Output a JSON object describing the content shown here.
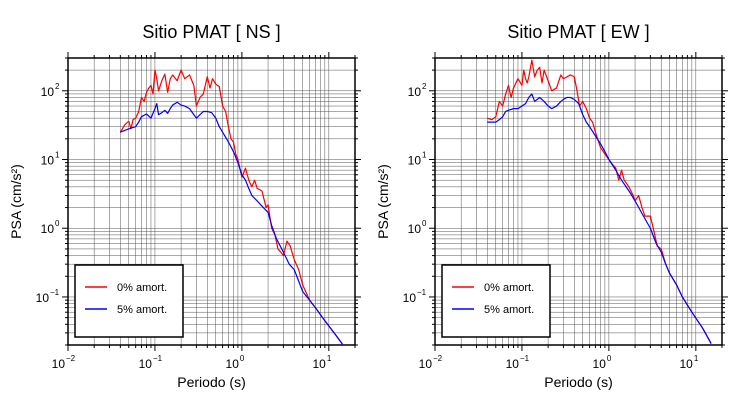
{
  "chart_data": [
    {
      "type": "line",
      "title": "Sitio PMAT [ NS ]",
      "xlabel": "Periodo (s)",
      "ylabel": "PSA (cm/s²)",
      "xscale": "log",
      "yscale": "log",
      "xlim": [
        0.01,
        20
      ],
      "ylim": [
        0.02,
        300
      ],
      "grid": true,
      "legend_position": "bottom-left",
      "x_ticks": [
        {
          "value": 0.01,
          "base": "10",
          "exp": "−2"
        },
        {
          "value": 0.1,
          "base": "10",
          "exp": "−1"
        },
        {
          "value": 1,
          "base": "10",
          "exp": "0"
        },
        {
          "value": 10,
          "base": "10",
          "exp": "1"
        }
      ],
      "y_ticks": [
        {
          "value": 0.1,
          "base": "10",
          "exp": "−1"
        },
        {
          "value": 1,
          "base": "10",
          "exp": "0"
        },
        {
          "value": 10,
          "base": "10",
          "exp": "1"
        },
        {
          "value": 100,
          "base": "10",
          "exp": "2"
        }
      ],
      "series": [
        {
          "name": "0% amort.",
          "color": "#ff0000",
          "points": [
            [
              0.04,
              25
            ],
            [
              0.045,
              32
            ],
            [
              0.05,
              36
            ],
            [
              0.053,
              28
            ],
            [
              0.056,
              38
            ],
            [
              0.06,
              40
            ],
            [
              0.065,
              50
            ],
            [
              0.07,
              80
            ],
            [
              0.075,
              70
            ],
            [
              0.08,
              95
            ],
            [
              0.085,
              110
            ],
            [
              0.09,
              120
            ],
            [
              0.095,
              90
            ],
            [
              0.1,
              200
            ],
            [
              0.105,
              150
            ],
            [
              0.11,
              100
            ],
            [
              0.12,
              140
            ],
            [
              0.13,
              175
            ],
            [
              0.14,
              95
            ],
            [
              0.15,
              150
            ],
            [
              0.16,
              170
            ],
            [
              0.18,
              140
            ],
            [
              0.2,
              200
            ],
            [
              0.22,
              150
            ],
            [
              0.25,
              170
            ],
            [
              0.28,
              120
            ],
            [
              0.3,
              60
            ],
            [
              0.33,
              80
            ],
            [
              0.36,
              90
            ],
            [
              0.4,
              160
            ],
            [
              0.43,
              110
            ],
            [
              0.46,
              150
            ],
            [
              0.5,
              125
            ],
            [
              0.55,
              115
            ],
            [
              0.6,
              60
            ],
            [
              0.65,
              50
            ],
            [
              0.7,
              30
            ],
            [
              0.75,
              20
            ],
            [
              0.8,
              18
            ],
            [
              0.85,
              12
            ],
            [
              0.9,
              10
            ],
            [
              1.0,
              5.5
            ],
            [
              1.1,
              7.5
            ],
            [
              1.2,
              5
            ],
            [
              1.3,
              4
            ],
            [
              1.4,
              5
            ],
            [
              1.5,
              3.8
            ],
            [
              1.7,
              3.5
            ],
            [
              1.9,
              2
            ],
            [
              2.0,
              2.2
            ],
            [
              2.2,
              1.0
            ],
            [
              2.4,
              0.8
            ],
            [
              2.6,
              0.5
            ],
            [
              2.8,
              0.45
            ],
            [
              3.0,
              0.4
            ],
            [
              3.3,
              0.65
            ],
            [
              3.6,
              0.55
            ],
            [
              4.0,
              0.35
            ],
            [
              4.5,
              0.25
            ],
            [
              5.0,
              0.15
            ],
            [
              6.0,
              0.09
            ],
            [
              7.0,
              0.07
            ],
            [
              9.0,
              0.045
            ],
            [
              12.0,
              0.028
            ],
            [
              15.0,
              0.019
            ]
          ]
        },
        {
          "name": "5% amort.",
          "color": "#0000ff",
          "points": [
            [
              0.04,
              25
            ],
            [
              0.05,
              28
            ],
            [
              0.06,
              30
            ],
            [
              0.065,
              35
            ],
            [
              0.07,
              42
            ],
            [
              0.08,
              46
            ],
            [
              0.09,
              40
            ],
            [
              0.1,
              55
            ],
            [
              0.105,
              65
            ],
            [
              0.11,
              45
            ],
            [
              0.12,
              48
            ],
            [
              0.13,
              52
            ],
            [
              0.14,
              47
            ],
            [
              0.15,
              55
            ],
            [
              0.16,
              62
            ],
            [
              0.18,
              68
            ],
            [
              0.2,
              62
            ],
            [
              0.22,
              60
            ],
            [
              0.25,
              55
            ],
            [
              0.28,
              45
            ],
            [
              0.3,
              40
            ],
            [
              0.33,
              45
            ],
            [
              0.36,
              50
            ],
            [
              0.4,
              50
            ],
            [
              0.45,
              48
            ],
            [
              0.5,
              40
            ],
            [
              0.55,
              30
            ],
            [
              0.6,
              25
            ],
            [
              0.7,
              18
            ],
            [
              0.8,
              13
            ],
            [
              0.9,
              9
            ],
            [
              1.0,
              6
            ],
            [
              1.1,
              5
            ],
            [
              1.2,
              3.8
            ],
            [
              1.3,
              3
            ],
            [
              1.5,
              2.5
            ],
            [
              1.7,
              2.1
            ],
            [
              2.0,
              1.7
            ],
            [
              2.2,
              1.1
            ],
            [
              2.5,
              0.7
            ],
            [
              3.0,
              0.45
            ],
            [
              3.5,
              0.3
            ],
            [
              4.0,
              0.25
            ],
            [
              4.5,
              0.17
            ],
            [
              5.0,
              0.12
            ],
            [
              6.0,
              0.09
            ],
            [
              7.0,
              0.07
            ],
            [
              9.0,
              0.045
            ],
            [
              12.0,
              0.028
            ],
            [
              15.0,
              0.019
            ]
          ]
        }
      ]
    },
    {
      "type": "line",
      "title": "Sitio PMAT [ EW ]",
      "xlabel": "Periodo (s)",
      "ylabel": "PSA (cm/s²)",
      "xscale": "log",
      "yscale": "log",
      "xlim": [
        0.01,
        20
      ],
      "ylim": [
        0.02,
        300
      ],
      "grid": true,
      "legend_position": "bottom-left",
      "x_ticks": [
        {
          "value": 0.01,
          "base": "10",
          "exp": "−2"
        },
        {
          "value": 0.1,
          "base": "10",
          "exp": "−1"
        },
        {
          "value": 1,
          "base": "10",
          "exp": "0"
        },
        {
          "value": 10,
          "base": "10",
          "exp": "1"
        }
      ],
      "y_ticks": [
        {
          "value": 0.1,
          "base": "10",
          "exp": "−1"
        },
        {
          "value": 1,
          "base": "10",
          "exp": "0"
        },
        {
          "value": 10,
          "base": "10",
          "exp": "1"
        },
        {
          "value": 100,
          "base": "10",
          "exp": "2"
        }
      ],
      "series": [
        {
          "name": "0% amort.",
          "color": "#ff0000",
          "points": [
            [
              0.04,
              40
            ],
            [
              0.045,
              38
            ],
            [
              0.05,
              42
            ],
            [
              0.055,
              70
            ],
            [
              0.06,
              60
            ],
            [
              0.065,
              90
            ],
            [
              0.07,
              120
            ],
            [
              0.075,
              80
            ],
            [
              0.08,
              110
            ],
            [
              0.09,
              150
            ],
            [
              0.1,
              120
            ],
            [
              0.105,
              200
            ],
            [
              0.11,
              150
            ],
            [
              0.115,
              130
            ],
            [
              0.12,
              160
            ],
            [
              0.13,
              280
            ],
            [
              0.14,
              160
            ],
            [
              0.15,
              200
            ],
            [
              0.16,
              220
            ],
            [
              0.17,
              130
            ],
            [
              0.18,
              200
            ],
            [
              0.2,
              140
            ],
            [
              0.22,
              100
            ],
            [
              0.25,
              110
            ],
            [
              0.28,
              170
            ],
            [
              0.3,
              150
            ],
            [
              0.33,
              160
            ],
            [
              0.36,
              170
            ],
            [
              0.4,
              160
            ],
            [
              0.43,
              100
            ],
            [
              0.46,
              60
            ],
            [
              0.5,
              70
            ],
            [
              0.55,
              55
            ],
            [
              0.6,
              40
            ],
            [
              0.65,
              35
            ],
            [
              0.7,
              25
            ],
            [
              0.8,
              15
            ],
            [
              0.9,
              12
            ],
            [
              1.0,
              10
            ],
            [
              1.1,
              8.5
            ],
            [
              1.2,
              7.5
            ],
            [
              1.3,
              5
            ],
            [
              1.4,
              7
            ],
            [
              1.5,
              5
            ],
            [
              1.7,
              4
            ],
            [
              1.9,
              3
            ],
            [
              2.0,
              2.5
            ],
            [
              2.2,
              3
            ],
            [
              2.4,
              2
            ],
            [
              2.6,
              1.5
            ],
            [
              2.8,
              1.5
            ],
            [
              3.0,
              1.5
            ],
            [
              3.3,
              0.9
            ],
            [
              3.6,
              0.55
            ],
            [
              4.0,
              0.5
            ],
            [
              4.5,
              0.3
            ],
            [
              5.0,
              0.22
            ],
            [
              6.0,
              0.15
            ],
            [
              7.0,
              0.1
            ],
            [
              9.0,
              0.06
            ],
            [
              12.0,
              0.035
            ],
            [
              15.0,
              0.021
            ]
          ]
        },
        {
          "name": "5% amort.",
          "color": "#0000ff",
          "points": [
            [
              0.04,
              35
            ],
            [
              0.05,
              35
            ],
            [
              0.055,
              38
            ],
            [
              0.06,
              42
            ],
            [
              0.065,
              50
            ],
            [
              0.07,
              52
            ],
            [
              0.08,
              55
            ],
            [
              0.09,
              55
            ],
            [
              0.1,
              60
            ],
            [
              0.11,
              65
            ],
            [
              0.12,
              80
            ],
            [
              0.13,
              90
            ],
            [
              0.14,
              70
            ],
            [
              0.15,
              75
            ],
            [
              0.16,
              80
            ],
            [
              0.18,
              70
            ],
            [
              0.2,
              60
            ],
            [
              0.22,
              55
            ],
            [
              0.25,
              60
            ],
            [
              0.28,
              70
            ],
            [
              0.3,
              75
            ],
            [
              0.33,
              80
            ],
            [
              0.36,
              80
            ],
            [
              0.4,
              75
            ],
            [
              0.45,
              65
            ],
            [
              0.5,
              45
            ],
            [
              0.55,
              35
            ],
            [
              0.6,
              30
            ],
            [
              0.7,
              22
            ],
            [
              0.8,
              17
            ],
            [
              0.9,
              13
            ],
            [
              1.0,
              10
            ],
            [
              1.2,
              7
            ],
            [
              1.4,
              5
            ],
            [
              1.7,
              3.5
            ],
            [
              2.0,
              2.5
            ],
            [
              2.5,
              1.5
            ],
            [
              3.0,
              1.0
            ],
            [
              3.5,
              0.6
            ],
            [
              4.0,
              0.45
            ],
            [
              4.5,
              0.3
            ],
            [
              5.0,
              0.22
            ],
            [
              6.0,
              0.15
            ],
            [
              7.0,
              0.1
            ],
            [
              9.0,
              0.06
            ],
            [
              12.0,
              0.035
            ],
            [
              15.0,
              0.021
            ]
          ]
        }
      ]
    }
  ]
}
